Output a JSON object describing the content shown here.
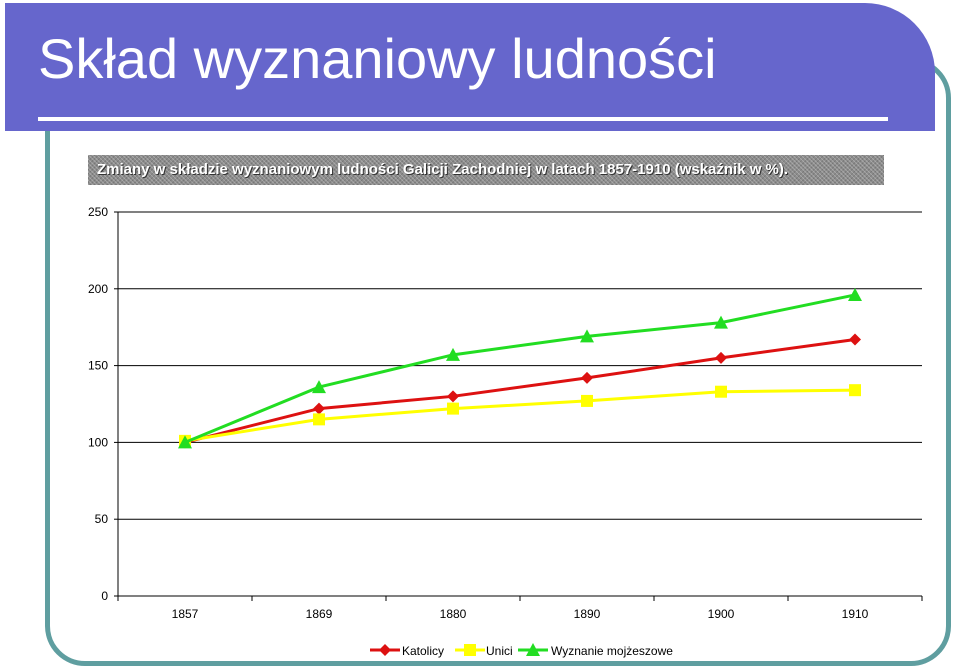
{
  "slide": {
    "title": "Skład wyznaniowy ludności",
    "subtitle": "Zmiany w składzie wyznaniowym ludności Galicji Zachodniej w latach 1857-1910 (wskaźnik w %)."
  },
  "chart_data": {
    "type": "line",
    "title": "",
    "xlabel": "",
    "ylabel": "",
    "categories": [
      "1857",
      "1869",
      "1880",
      "1890",
      "1900",
      "1910"
    ],
    "ylim": [
      0,
      250
    ],
    "yticks": [
      0,
      50,
      100,
      150,
      200,
      250
    ],
    "grid": true,
    "legend_position": "bottom",
    "series": [
      {
        "name": "Katolicy",
        "color": "#dd1111",
        "marker": "diamond",
        "values": [
          100,
          122,
          130,
          142,
          155,
          167
        ]
      },
      {
        "name": "Unici",
        "color": "#ffff00",
        "marker": "square",
        "values": [
          101,
          115,
          122,
          127,
          133,
          134
        ]
      },
      {
        "name": "Wyznanie mojżeszowe",
        "color": "#22dd22",
        "marker": "triangle",
        "values": [
          100,
          136,
          157,
          169,
          178,
          196
        ]
      }
    ]
  }
}
